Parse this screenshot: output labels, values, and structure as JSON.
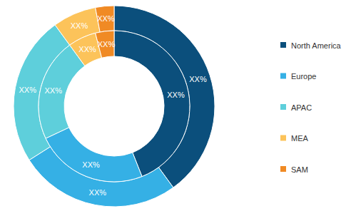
{
  "chart_data": {
    "type": "pie",
    "categories": [
      "North America",
      "Europe",
      "APAC",
      "MEA",
      "SAM"
    ],
    "colors": [
      "#0b4f7c",
      "#35b0e5",
      "#5ecfdb",
      "#fcc35a",
      "#f08a24"
    ],
    "series": [
      {
        "values": [
          40,
          26,
          24,
          7,
          3
        ],
        "value_labels": [
          "XX%",
          "XX%",
          "XX%",
          "XX%",
          "XX%"
        ]
      },
      {
        "values": [
          44,
          24,
          22,
          6,
          4
        ],
        "value_labels": [
          "XX%",
          "XX%",
          "XX%",
          "XX%",
          "XX%"
        ]
      }
    ],
    "data_labels": true,
    "legend": "right"
  }
}
